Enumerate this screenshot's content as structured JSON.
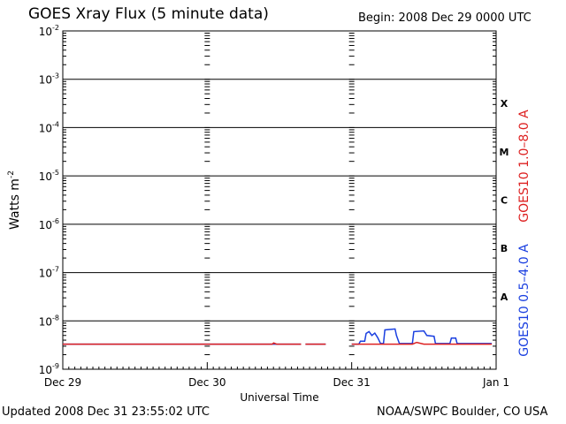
{
  "header": {
    "title": "GOES Xray Flux (5 minute data)",
    "begin": "Begin:  2008 Dec 29 0000 UTC"
  },
  "footer": {
    "updated": "Updated 2008 Dec 31 23:55:02 UTC",
    "credit": "NOAA/SWPC Boulder, CO USA"
  },
  "chart_data": {
    "type": "line",
    "title": "GOES Xray Flux (5 minute data)",
    "xlabel": "Universal Time",
    "ylabel": "Watts m",
    "ylabel_superscript": "-2",
    "y_scale": "log",
    "ylim": [
      1e-09,
      0.01
    ],
    "y_ticks": [
      {
        "base": "10",
        "exp": "-9"
      },
      {
        "base": "10",
        "exp": "-8"
      },
      {
        "base": "10",
        "exp": "-7"
      },
      {
        "base": "10",
        "exp": "-6"
      },
      {
        "base": "10",
        "exp": "-5"
      },
      {
        "base": "10",
        "exp": "-4"
      },
      {
        "base": "10",
        "exp": "-3"
      },
      {
        "base": "10",
        "exp": "-2"
      }
    ],
    "x_unit": "days since 2008 Dec 29 0000 UTC",
    "xlim": [
      0,
      3
    ],
    "x_ticks": [
      "Dec 29",
      "Dec 30",
      "Dec 31",
      "Jan 1"
    ],
    "flare_classes": [
      {
        "label": "X",
        "level": 0.0001
      },
      {
        "label": "M",
        "level": 1e-05
      },
      {
        "label": "C",
        "level": 1e-06
      },
      {
        "label": "B",
        "level": 1e-07
      },
      {
        "label": "A",
        "level": 1e-08
      }
    ],
    "grid": "horizontal decade lines",
    "series": [
      {
        "name": "GOES10 1.0–8.0 A",
        "color": "#dd2020",
        "segments": [
          [
            [
              0.0,
              3.3e-09
            ],
            [
              1.45,
              3.3e-09
            ],
            [
              1.46,
              3.5e-09
            ],
            [
              1.48,
              3.3e-09
            ],
            [
              1.65,
              3.3e-09
            ]
          ],
          [
            [
              1.68,
              3.3e-09
            ],
            [
              1.82,
              3.3e-09
            ]
          ],
          [
            [
              2.0,
              3.3e-09
            ],
            [
              2.42,
              3.3e-09
            ],
            [
              2.45,
              3.6e-09
            ],
            [
              2.5,
              3.3e-09
            ],
            [
              2.97,
              3.3e-09
            ]
          ]
        ]
      },
      {
        "name": "GOES10 0.5–4.0 A",
        "color": "#1a3fe0",
        "segments": [
          [
            [
              0.0,
              3.3e-09
            ],
            [
              1.45,
              3.3e-09
            ],
            [
              1.65,
              3.3e-09
            ]
          ],
          [
            [
              1.68,
              3.3e-09
            ],
            [
              1.82,
              3.3e-09
            ]
          ],
          [
            [
              2.0,
              3.3e-09
            ],
            [
              2.05,
              3.3e-09
            ],
            [
              2.06,
              3.8e-09
            ],
            [
              2.09,
              3.8e-09
            ],
            [
              2.1,
              5.5e-09
            ],
            [
              2.12,
              6e-09
            ],
            [
              2.14,
              5e-09
            ],
            [
              2.16,
              5.6e-09
            ],
            [
              2.18,
              4.5e-09
            ],
            [
              2.2,
              3.4e-09
            ],
            [
              2.22,
              3.4e-09
            ],
            [
              2.23,
              6.5e-09
            ],
            [
              2.3,
              6.8e-09
            ],
            [
              2.31,
              5e-09
            ],
            [
              2.33,
              3.4e-09
            ],
            [
              2.42,
              3.4e-09
            ],
            [
              2.43,
              6e-09
            ],
            [
              2.5,
              6.2e-09
            ],
            [
              2.52,
              5e-09
            ],
            [
              2.57,
              4.8e-09
            ],
            [
              2.58,
              3.4e-09
            ],
            [
              2.68,
              3.4e-09
            ],
            [
              2.69,
              4.4e-09
            ],
            [
              2.72,
              4.4e-09
            ],
            [
              2.73,
              3.4e-09
            ],
            [
              2.97,
              3.4e-09
            ]
          ]
        ]
      }
    ]
  }
}
